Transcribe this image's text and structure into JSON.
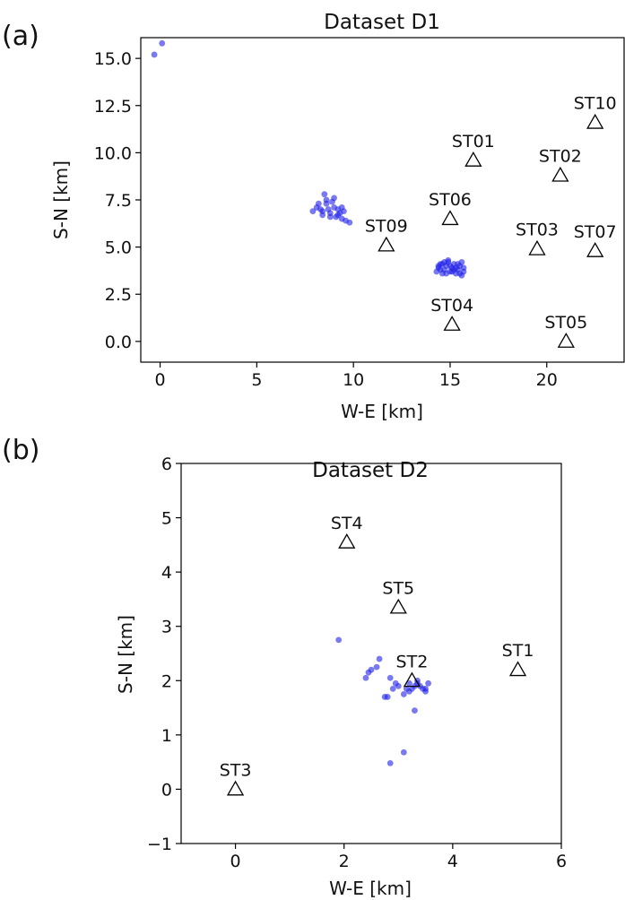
{
  "chart_data": [
    {
      "type": "scatter",
      "panel_label": "(a)",
      "title": "Dataset D1",
      "xlabel": "W-E [km]",
      "ylabel": "S-N [km]",
      "xlim": [
        -1.0,
        24.0
      ],
      "ylim": [
        -1.1,
        16.1
      ],
      "xticks": [
        0,
        5,
        10,
        15,
        20
      ],
      "xtick_labels": [
        "0",
        "5",
        "10",
        "15",
        "20"
      ],
      "yticks": [
        0.0,
        2.5,
        5.0,
        7.5,
        10.0,
        12.5,
        15.0
      ],
      "ytick_labels": [
        "0.0",
        "2.5",
        "5.0",
        "7.5",
        "10.0",
        "12.5",
        "15.0"
      ],
      "stations": [
        {
          "name": "ST01",
          "x": 16.2,
          "y": 9.6
        },
        {
          "name": "ST02",
          "x": 20.7,
          "y": 8.8
        },
        {
          "name": "ST03",
          "x": 19.5,
          "y": 4.9
        },
        {
          "name": "ST04",
          "x": 15.1,
          "y": 0.9
        },
        {
          "name": "ST05",
          "x": 21.0,
          "y": 0.0
        },
        {
          "name": "ST06",
          "x": 15.0,
          "y": 6.5
        },
        {
          "name": "ST07",
          "x": 22.5,
          "y": 4.8
        },
        {
          "name": "ST09",
          "x": 11.7,
          "y": 5.1
        },
        {
          "name": "ST10",
          "x": 22.5,
          "y": 11.6
        }
      ],
      "events": {
        "x": [
          -0.3,
          0.1,
          7.9,
          8.1,
          8.3,
          8.4,
          8.5,
          8.6,
          8.7,
          8.8,
          8.9,
          9.0,
          9.1,
          9.2,
          9.3,
          9.4,
          9.5,
          9.6,
          9.8,
          8.2,
          8.6,
          9.0,
          9.4,
          8.8,
          9.2,
          8.4,
          14.3,
          14.4,
          14.5,
          14.6,
          14.7,
          14.8,
          14.9,
          15.0,
          15.1,
          15.2,
          15.3,
          15.4,
          15.5,
          15.6,
          15.7,
          14.5,
          14.8,
          15.1,
          15.4,
          15.7,
          14.6,
          14.9,
          15.2,
          15.5,
          14.4,
          14.7,
          15.0,
          15.3,
          15.6
        ],
        "y": [
          15.2,
          15.8,
          6.9,
          7.1,
          7.0,
          6.7,
          7.8,
          7.3,
          7.0,
          6.8,
          7.4,
          7.1,
          6.6,
          7.0,
          6.8,
          6.5,
          6.9,
          6.4,
          6.3,
          7.3,
          7.5,
          7.6,
          7.1,
          6.6,
          6.7,
          6.9,
          3.7,
          3.9,
          4.1,
          3.6,
          3.8,
          4.0,
          4.2,
          3.7,
          3.9,
          4.1,
          3.6,
          3.8,
          4.0,
          4.2,
          3.7,
          3.8,
          3.6,
          3.7,
          4.1,
          3.9,
          4.1,
          4.3,
          3.8,
          3.6,
          4.0,
          4.2,
          4.0,
          3.9,
          3.5
        ]
      }
    },
    {
      "type": "scatter",
      "panel_label": "(b)",
      "title": "Dataset D2",
      "xlabel": "W-E [km]",
      "ylabel": "S-N [km]",
      "xlim": [
        -1.0,
        6.0
      ],
      "ylim": [
        -1.0,
        6.0
      ],
      "xticks": [
        0,
        2,
        4,
        6
      ],
      "xtick_labels": [
        "0",
        "2",
        "4",
        "6"
      ],
      "yticks": [
        -1,
        0,
        1,
        2,
        3,
        4,
        5,
        6
      ],
      "ytick_labels": [
        "−1",
        "0",
        "1",
        "2",
        "3",
        "4",
        "5",
        "6"
      ],
      "stations": [
        {
          "name": "ST1",
          "x": 5.2,
          "y": 2.2
        },
        {
          "name": "ST2",
          "x": 3.25,
          "y": 2.0
        },
        {
          "name": "ST3",
          "x": 0.0,
          "y": 0.0
        },
        {
          "name": "ST4",
          "x": 2.05,
          "y": 4.55
        },
        {
          "name": "ST5",
          "x": 3.0,
          "y": 3.35
        }
      ],
      "events": {
        "x": [
          1.9,
          2.4,
          2.45,
          2.5,
          2.6,
          2.65,
          2.75,
          2.8,
          2.85,
          2.9,
          2.95,
          3.0,
          3.1,
          3.15,
          3.2,
          3.25,
          3.3,
          3.35,
          3.4,
          3.45,
          3.5,
          3.55,
          3.3,
          3.1,
          2.85,
          3.35,
          3.5,
          3.2
        ],
        "y": [
          2.75,
          2.05,
          2.15,
          2.2,
          2.25,
          2.4,
          1.7,
          1.7,
          2.05,
          1.85,
          1.95,
          1.9,
          1.75,
          1.85,
          1.95,
          1.85,
          1.9,
          2.0,
          1.9,
          1.85,
          1.8,
          1.95,
          1.45,
          0.68,
          0.48,
          1.95,
          1.85,
          1.8
        ]
      }
    }
  ]
}
